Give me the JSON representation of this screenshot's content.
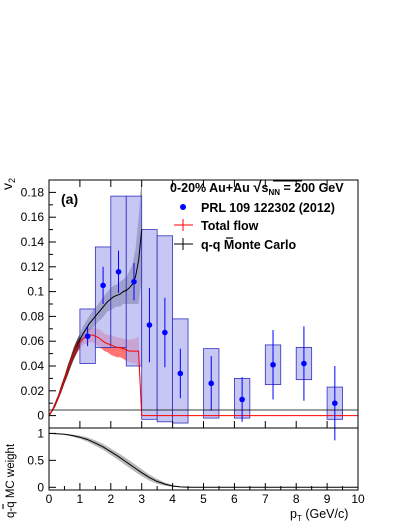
{
  "chart_data": [
    {
      "type": "scatter",
      "panel_label": "(a)",
      "ylabel": "v",
      "ylabel_sub": "2",
      "ylim": [
        -0.01,
        0.19
      ],
      "xlim": [
        0,
        10
      ],
      "yticks": [
        "0",
        "0.02",
        "0.04",
        "0.06",
        "0.08",
        "0.1",
        "0.12",
        "0.14",
        "0.16",
        "0.18"
      ],
      "ytick_values": [
        0,
        0.02,
        0.04,
        0.06,
        0.08,
        0.1,
        0.12,
        0.14,
        0.16,
        0.18
      ],
      "grid": false,
      "header": {
        "prefix": "0-20% Au+Au ",
        "sqrt_symbol": "√",
        "s_text": "s",
        "s_sub": "NN",
        "suffix": " = 200 GeV"
      },
      "legend_position": "top-right",
      "legend": [
        {
          "key": "prl",
          "label": "PRL 109 122302 (2012)",
          "color": "#0000ff"
        },
        {
          "key": "total",
          "label": "Total flow",
          "color": "#ff0000"
        },
        {
          "key": "qqbar",
          "label": "q-q Monte Carlo",
          "color": "#000000"
        }
      ],
      "legend_overline": "q",
      "series": [
        {
          "name": "PRL 109 122302 (2012)",
          "color": "#0000ff",
          "x": [
            1.25,
            1.75,
            2.25,
            2.75,
            3.25,
            3.75,
            4.25,
            5.25,
            6.25,
            7.25,
            8.25,
            9.25
          ],
          "y": [
            0.064,
            0.105,
            0.116,
            0.108,
            0.073,
            0.067,
            0.034,
            0.026,
            0.013,
            0.041,
            0.042,
            0.01
          ],
          "stat_err": [
            0.008,
            0.015,
            0.017,
            0.015,
            0.03,
            0.028,
            0.02,
            0.022,
            0.018,
            0.028,
            0.03,
            0.03
          ],
          "sys_low": [
            0.042,
            0.055,
            0.055,
            0.04,
            -0.003,
            -0.005,
            -0.006,
            -0.002,
            -0.002,
            0.025,
            0.029,
            -0.003
          ],
          "sys_high": [
            0.086,
            0.136,
            0.177,
            0.177,
            0.15,
            0.145,
            0.078,
            0.054,
            0.03,
            0.057,
            0.055,
            0.023
          ]
        },
        {
          "name": "Total flow",
          "color": "#ff0000",
          "x": [
            0.0,
            0.1,
            0.2,
            0.3,
            0.4,
            0.5,
            0.6,
            0.7,
            0.8,
            0.9,
            1.0,
            1.1,
            1.2,
            1.3,
            1.4,
            1.5,
            1.6,
            1.7,
            1.8,
            1.9,
            2.0,
            2.1,
            2.2,
            2.3,
            2.4,
            2.5,
            2.6,
            2.7,
            2.8,
            2.9,
            3.0
          ],
          "y": [
            0.0,
            0.004,
            0.009,
            0.015,
            0.022,
            0.029,
            0.036,
            0.043,
            0.05,
            0.055,
            0.059,
            0.062,
            0.064,
            0.065,
            0.065,
            0.064,
            0.063,
            0.061,
            0.059,
            0.058,
            0.057,
            0.056,
            0.055,
            0.055,
            0.054,
            0.053,
            0.052,
            0.052,
            0.052,
            0.052,
            0.0
          ],
          "band": [
            0.001,
            0.001,
            0.002,
            0.002,
            0.003,
            0.003,
            0.004,
            0.004,
            0.004,
            0.005,
            0.005,
            0.005,
            0.006,
            0.006,
            0.006,
            0.006,
            0.007,
            0.007,
            0.007,
            0.007,
            0.008,
            0.008,
            0.008,
            0.008,
            0.008,
            0.009,
            0.009,
            0.01,
            0.01,
            0.012,
            0.0
          ]
        },
        {
          "name": "q-q Monte Carlo",
          "color": "#000000",
          "x": [
            0.0,
            0.1,
            0.2,
            0.3,
            0.4,
            0.5,
            0.6,
            0.7,
            0.8,
            0.9,
            1.0,
            1.1,
            1.2,
            1.3,
            1.4,
            1.5,
            1.6,
            1.7,
            1.8,
            1.9,
            2.0,
            2.1,
            2.2,
            2.3,
            2.4,
            2.5,
            2.6,
            2.7,
            2.8,
            2.9,
            3.0
          ],
          "y": [
            0.0,
            0.004,
            0.009,
            0.015,
            0.022,
            0.029,
            0.036,
            0.043,
            0.05,
            0.056,
            0.061,
            0.066,
            0.07,
            0.074,
            0.077,
            0.08,
            0.083,
            0.086,
            0.089,
            0.092,
            0.094,
            0.096,
            0.097,
            0.098,
            0.1,
            0.101,
            0.103,
            0.106,
            0.112,
            0.125,
            0.15
          ],
          "band": [
            0.001,
            0.001,
            0.002,
            0.002,
            0.003,
            0.003,
            0.004,
            0.004,
            0.005,
            0.005,
            0.005,
            0.006,
            0.006,
            0.006,
            0.007,
            0.007,
            0.007,
            0.008,
            0.008,
            0.008,
            0.009,
            0.009,
            0.009,
            0.01,
            0.01,
            0.011,
            0.013,
            0.016,
            0.022,
            0.035,
            0.04
          ]
        }
      ]
    },
    {
      "type": "line",
      "ylabel": "q-q MC weight",
      "ylabel_overline": "q",
      "xlabel": "p",
      "xlabel_sub": "T",
      "xlabel_unit": " (GeV/c)",
      "xlim": [
        0,
        10
      ],
      "ylim": [
        -0.05,
        1.1
      ],
      "xticks": [
        "0",
        "1",
        "2",
        "3",
        "4",
        "5",
        "6",
        "7",
        "8",
        "9",
        "10"
      ],
      "xtick_values": [
        0,
        1,
        2,
        3,
        4,
        5,
        6,
        7,
        8,
        9,
        10
      ],
      "yticks": [
        "0",
        "0.5",
        "1"
      ],
      "ytick_values": [
        0,
        0.5,
        1
      ],
      "grid": false,
      "series": [
        {
          "name": "q-q MC weight",
          "color": "#000000",
          "band_color": "#b0b0b0",
          "x": [
            0.0,
            0.25,
            0.5,
            0.75,
            1.0,
            1.25,
            1.5,
            1.75,
            2.0,
            2.25,
            2.5,
            2.75,
            3.0,
            3.25,
            3.5,
            3.75,
            4.0,
            4.25,
            4.5,
            4.75,
            5.0
          ],
          "y": [
            1.0,
            0.995,
            0.985,
            0.96,
            0.93,
            0.885,
            0.82,
            0.75,
            0.66,
            0.57,
            0.47,
            0.37,
            0.27,
            0.18,
            0.11,
            0.06,
            0.025,
            0.008,
            0.002,
            0.0,
            0.0
          ],
          "band": [
            0.0,
            0.005,
            0.01,
            0.02,
            0.03,
            0.04,
            0.05,
            0.055,
            0.06,
            0.065,
            0.07,
            0.07,
            0.065,
            0.055,
            0.045,
            0.03,
            0.015,
            0.006,
            0.002,
            0.0,
            0.0
          ]
        }
      ]
    }
  ]
}
